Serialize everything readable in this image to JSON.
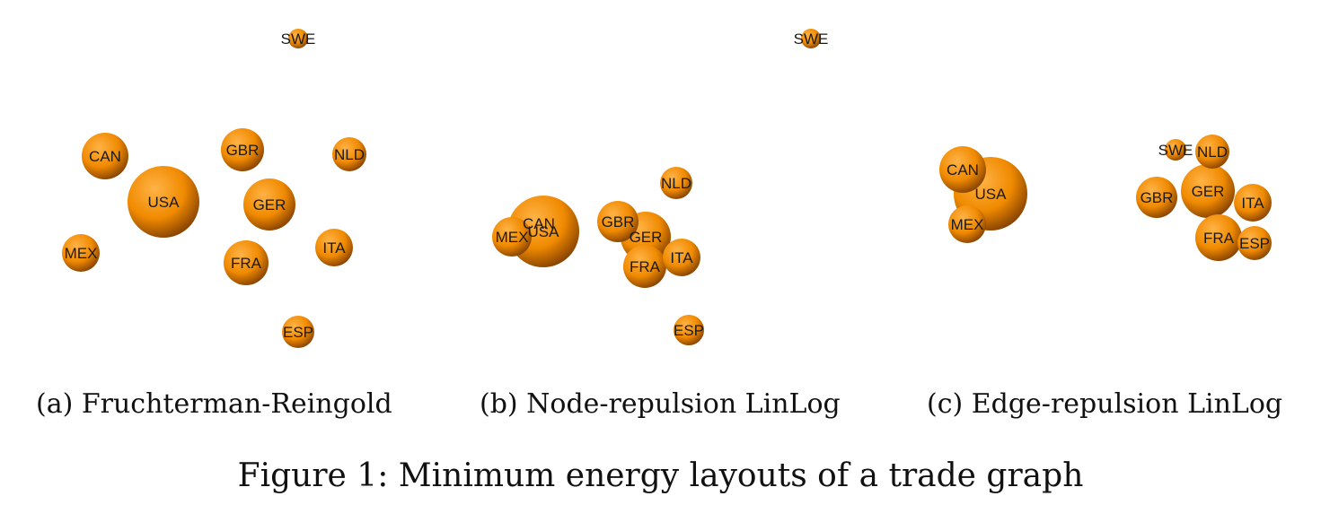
{
  "panels": [
    {
      "id": "a",
      "caption": "(a) Fruchterman-Reingold",
      "nodes": [
        {
          "label": "SWE"
        },
        {
          "label": "CAN"
        },
        {
          "label": "GBR"
        },
        {
          "label": "NLD"
        },
        {
          "label": "USA"
        },
        {
          "label": "GER"
        },
        {
          "label": "MEX"
        },
        {
          "label": "ITA"
        },
        {
          "label": "FRA"
        },
        {
          "label": "ESP"
        }
      ]
    },
    {
      "id": "b",
      "caption": "(b) Node-repulsion LinLog",
      "nodes": [
        {
          "label": "SWE"
        },
        {
          "label": "NLD"
        },
        {
          "label": "MEX"
        },
        {
          "label": "USA"
        },
        {
          "label": "CAN"
        },
        {
          "label": "GBR"
        },
        {
          "label": "GER"
        },
        {
          "label": "FRA"
        },
        {
          "label": "ITA"
        },
        {
          "label": "ESP"
        }
      ]
    },
    {
      "id": "c",
      "caption": "(c) Edge-repulsion LinLog",
      "nodes": [
        {
          "label": "CAN"
        },
        {
          "label": "MEX"
        },
        {
          "label": "USA"
        },
        {
          "label": "SWE"
        },
        {
          "label": "NLD"
        },
        {
          "label": "GBR"
        },
        {
          "label": "ITA"
        },
        {
          "label": "GER"
        },
        {
          "label": "ESP"
        },
        {
          "label": "FRA"
        }
      ]
    }
  ],
  "figure_caption": "Figure 1: Minimum energy layouts of a trade graph",
  "colors": {
    "sphere_light": "#ffb347",
    "sphere_mid": "#f08a00",
    "sphere_dark": "#7a3a00"
  }
}
